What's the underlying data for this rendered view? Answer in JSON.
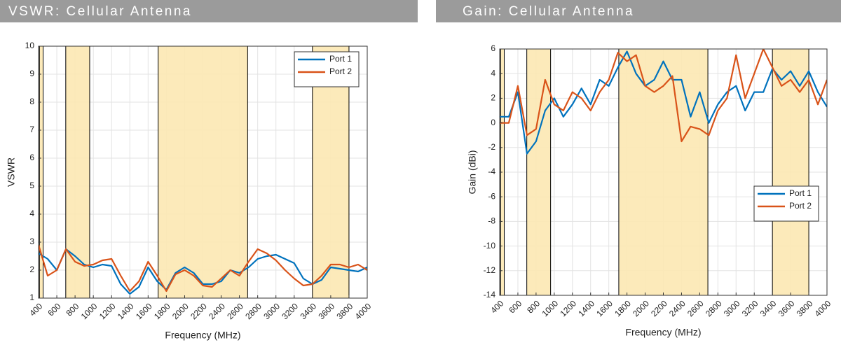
{
  "chart_data": [
    {
      "type": "line",
      "title": "VSWR: Cellular Antenna",
      "xlabel": "Frequency (MHz)",
      "ylabel": "VSWR",
      "x": [
        400,
        500,
        600,
        700,
        800,
        900,
        1000,
        1100,
        1200,
        1300,
        1400,
        1500,
        1600,
        1700,
        1800,
        1900,
        2000,
        2100,
        2200,
        2300,
        2400,
        2500,
        2600,
        2700,
        2800,
        2900,
        3000,
        3100,
        3200,
        3300,
        3400,
        3500,
        3600,
        3700,
        3800,
        3900,
        4000
      ],
      "series": [
        {
          "name": "Port 1",
          "color": "#0072bd",
          "values": [
            2.6,
            2.4,
            2.0,
            2.75,
            2.5,
            2.2,
            2.1,
            2.2,
            2.15,
            1.5,
            1.15,
            1.4,
            2.1,
            1.6,
            1.3,
            1.9,
            2.1,
            1.9,
            1.5,
            1.5,
            1.6,
            2.0,
            1.9,
            2.1,
            2.4,
            2.5,
            2.55,
            2.4,
            2.25,
            1.7,
            1.5,
            1.65,
            2.1,
            2.05,
            2.0,
            1.95,
            2.1
          ]
        },
        {
          "name": "Port 2",
          "color": "#d95319",
          "values": [
            2.9,
            1.8,
            2.0,
            2.75,
            2.3,
            2.15,
            2.2,
            2.35,
            2.4,
            1.8,
            1.25,
            1.6,
            2.3,
            1.8,
            1.25,
            1.85,
            2.0,
            1.8,
            1.45,
            1.4,
            1.7,
            2.0,
            1.8,
            2.3,
            2.75,
            2.6,
            2.35,
            2.0,
            1.7,
            1.45,
            1.5,
            1.8,
            2.2,
            2.2,
            2.1,
            2.2,
            2.0
          ]
        }
      ],
      "bands": [
        [
          410,
          450
        ],
        [
          698,
          960
        ],
        [
          1710,
          2690
        ],
        [
          3400,
          3800
        ]
      ],
      "band_color": "#fce8b2",
      "xlim": [
        400,
        4000
      ],
      "xticks": [
        400,
        600,
        800,
        1000,
        1200,
        1400,
        1600,
        1800,
        2000,
        2200,
        2400,
        2600,
        2800,
        3000,
        3200,
        3400,
        3600,
        3800,
        4000
      ],
      "ylim": [
        1,
        10
      ],
      "yticks": [
        1,
        2,
        3,
        4,
        5,
        6,
        7,
        8,
        9,
        10
      ],
      "grid": true,
      "legend": "upper right"
    },
    {
      "type": "line",
      "title": "Gain: Cellular Antenna",
      "xlabel": "Frequency (MHz)",
      "ylabel": "Gain (dBi)",
      "x": [
        400,
        500,
        600,
        700,
        800,
        900,
        1000,
        1100,
        1200,
        1300,
        1400,
        1500,
        1600,
        1700,
        1800,
        1900,
        2000,
        2100,
        2200,
        2300,
        2400,
        2500,
        2600,
        2700,
        2800,
        2900,
        3000,
        3100,
        3200,
        3300,
        3400,
        3500,
        3600,
        3700,
        3800,
        3900,
        4000
      ],
      "series": [
        {
          "name": "Port 1",
          "color": "#0072bd",
          "values": [
            0.5,
            0.5,
            2.5,
            -2.5,
            -1.5,
            1.0,
            2.0,
            0.5,
            1.5,
            2.8,
            1.5,
            3.5,
            3.0,
            4.5,
            5.8,
            4.0,
            3.0,
            3.5,
            5.0,
            3.5,
            3.5,
            0.5,
            2.5,
            0.0,
            1.5,
            2.5,
            3.0,
            1.0,
            2.5,
            2.5,
            4.4,
            3.5,
            4.2,
            3.0,
            4.2,
            2.5,
            1.3
          ]
        },
        {
          "name": "Port 2",
          "color": "#d95319",
          "values": [
            0.0,
            0.0,
            3.0,
            -1.0,
            -0.5,
            3.5,
            1.5,
            1.0,
            2.5,
            2.0,
            1.0,
            2.5,
            3.5,
            5.7,
            5.0,
            5.5,
            3.0,
            2.5,
            3.0,
            3.8,
            -1.5,
            -0.3,
            -0.5,
            -1.0,
            1.0,
            2.0,
            5.5,
            2.0,
            4.0,
            6.0,
            4.5,
            3.0,
            3.5,
            2.5,
            3.5,
            1.5,
            3.5
          ]
        }
      ],
      "bands": [
        [
          410,
          450
        ],
        [
          698,
          960
        ],
        [
          1710,
          2690
        ],
        [
          3400,
          3800
        ]
      ],
      "band_color": "#fce8b2",
      "xlim": [
        400,
        4000
      ],
      "xticks": [
        400,
        600,
        800,
        1000,
        1200,
        1400,
        1600,
        1800,
        2000,
        2200,
        2400,
        2600,
        2800,
        3000,
        3200,
        3400,
        3600,
        3800,
        4000
      ],
      "ylim": [
        -14,
        6
      ],
      "yticks": [
        -14,
        -12,
        -10,
        -8,
        -6,
        -4,
        -2,
        0,
        2,
        4,
        6
      ],
      "grid": true,
      "legend": "lower right"
    }
  ]
}
